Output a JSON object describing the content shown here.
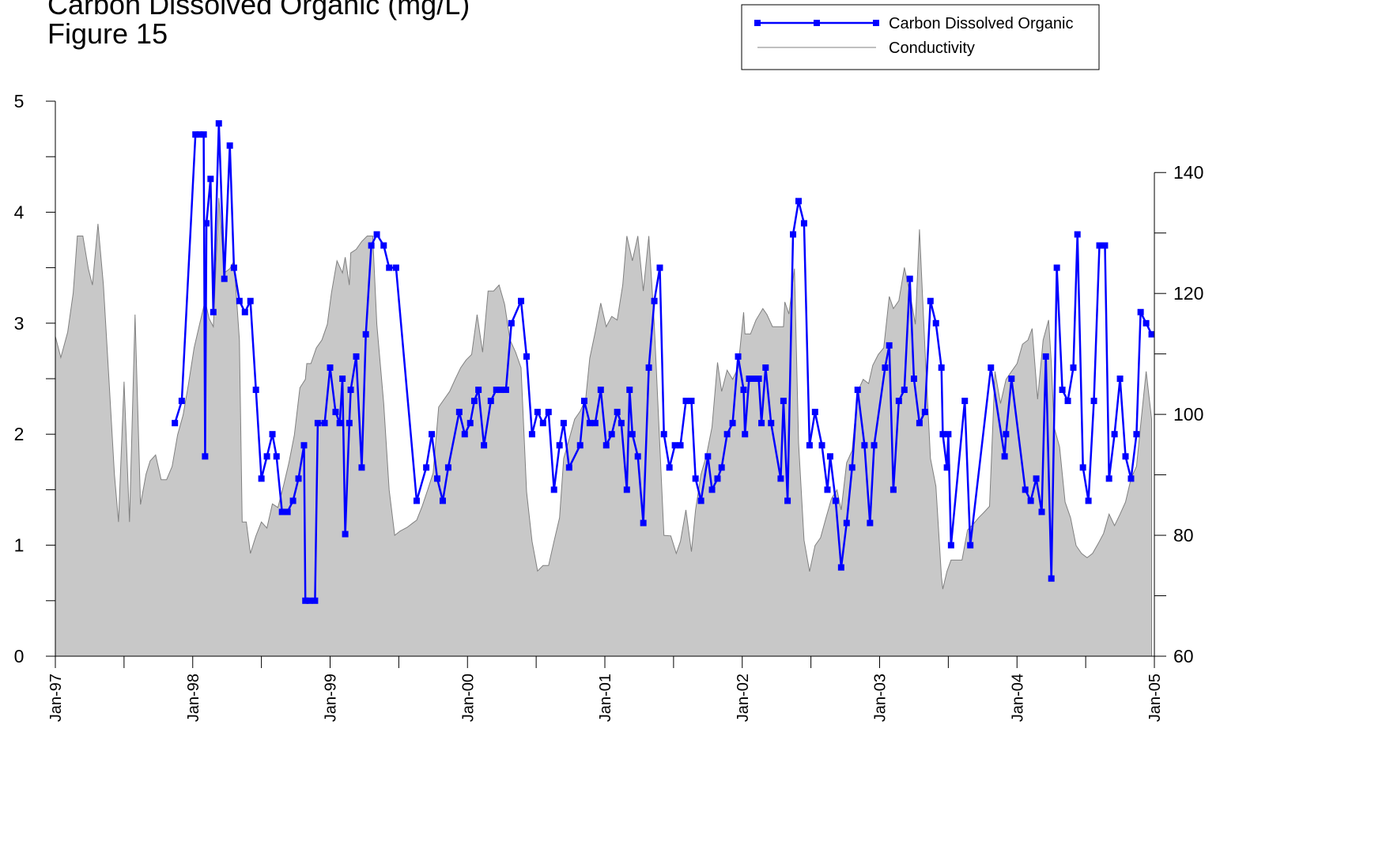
{
  "chart_data": {
    "type": "line",
    "title": "Carbon Dissolved Organic (mg/L)",
    "subtitle": "Figure 15",
    "legend": "top-right",
    "xlim": [
      1997,
      2005
    ],
    "xticks": [
      {
        "value": 1997,
        "label": "Jan-97"
      },
      {
        "value": 1998,
        "label": "Jan-98"
      },
      {
        "value": 1999,
        "label": "Jan-99"
      },
      {
        "value": 2000,
        "label": "Jan-00"
      },
      {
        "value": 2001,
        "label": "Jan-01"
      },
      {
        "value": 2002,
        "label": "Jan-02"
      },
      {
        "value": 2003,
        "label": "Jan-03"
      },
      {
        "value": 2004,
        "label": "Jan-04"
      },
      {
        "value": 2005,
        "label": "Jan-05"
      }
    ],
    "xminorticks": [
      1997.5,
      1998.5,
      1999.5,
      2000.5,
      2001.5,
      2002.5,
      2003.5,
      2004.5
    ],
    "ylim": [
      0,
      5
    ],
    "yticks": [
      0,
      1,
      2,
      3,
      4,
      5
    ],
    "yminorticks": [
      0.5,
      1.5,
      2.5,
      3.5,
      4.5
    ],
    "y2lim": [
      60,
      151.8
    ],
    "y2ticks": [
      60,
      80,
      100,
      120,
      140
    ],
    "y2minorticks": [
      70,
      90,
      110,
      130
    ],
    "series": [
      {
        "name": "Carbon Dissolved Organic",
        "type": "line",
        "color": "#0000ff",
        "x": [
          1997.87,
          1997.92,
          1998.02,
          1998.05,
          1998.08,
          1998.09,
          1998.1,
          1998.13,
          1998.15,
          1998.19,
          1998.23,
          1998.27,
          1998.3,
          1998.34,
          1998.38,
          1998.42,
          1998.46,
          1998.5,
          1998.54,
          1998.58,
          1998.61,
          1998.65,
          1998.69,
          1998.73,
          1998.77,
          1998.81,
          1998.82,
          1998.85,
          1998.89,
          1998.91,
          1998.96,
          1999.0,
          1999.04,
          1999.07,
          1999.09,
          1999.11,
          1999.14,
          1999.15,
          1999.19,
          1999.23,
          1999.26,
          1999.3,
          1999.34,
          1999.39,
          1999.43,
          1999.48,
          1999.63,
          1999.7,
          1999.74,
          1999.78,
          1999.82,
          1999.86,
          1999.94,
          1999.98,
          2000.02,
          2000.05,
          2000.08,
          2000.12,
          2000.17,
          2000.21,
          2000.24,
          2000.28,
          2000.32,
          2000.39,
          2000.43,
          2000.47,
          2000.51,
          2000.55,
          2000.59,
          2000.63,
          2000.67,
          2000.7,
          2000.74,
          2000.82,
          2000.85,
          2000.89,
          2000.93,
          2000.97,
          2001.01,
          2001.05,
          2001.09,
          2001.12,
          2001.16,
          2001.18,
          2001.2,
          2001.24,
          2001.28,
          2001.32,
          2001.36,
          2001.4,
          2001.43,
          2001.47,
          2001.51,
          2001.55,
          2001.59,
          2001.63,
          2001.66,
          2001.7,
          2001.75,
          2001.78,
          2001.82,
          2001.85,
          2001.89,
          2001.93,
          2001.97,
          2002.01,
          2002.02,
          2002.05,
          2002.09,
          2002.12,
          2002.14,
          2002.17,
          2002.21,
          2002.28,
          2002.3,
          2002.33,
          2002.37,
          2002.41,
          2002.45,
          2002.49,
          2002.53,
          2002.58,
          2002.62,
          2002.64,
          2002.68,
          2002.72,
          2002.76,
          2002.8,
          2002.84,
          2002.89,
          2002.93,
          2002.96,
          2003.04,
          2003.07,
          2003.1,
          2003.14,
          2003.18,
          2003.22,
          2003.25,
          2003.29,
          2003.33,
          2003.37,
          2003.41,
          2003.45,
          2003.46,
          2003.49,
          2003.5,
          2003.52,
          2003.62,
          2003.66,
          2003.81,
          2003.91,
          2003.92,
          2003.96,
          2004.06,
          2004.1,
          2004.14,
          2004.18,
          2004.21,
          2004.25,
          2004.29,
          2004.33,
          2004.37,
          2004.41,
          2004.44,
          2004.48,
          2004.52,
          2004.56,
          2004.6,
          2004.61,
          2004.64,
          2004.67,
          2004.71,
          2004.75,
          2004.79,
          2004.83,
          2004.87,
          2004.9,
          2004.94,
          2004.98
        ],
        "values": [
          2.1,
          2.3,
          4.7,
          4.7,
          4.7,
          1.8,
          3.9,
          4.3,
          3.1,
          4.8,
          3.4,
          4.6,
          3.5,
          3.2,
          3.1,
          3.2,
          2.4,
          1.6,
          1.8,
          2.0,
          1.8,
          1.3,
          1.3,
          1.4,
          1.6,
          1.9,
          0.5,
          0.5,
          0.5,
          2.1,
          2.1,
          2.6,
          2.2,
          2.1,
          2.5,
          1.1,
          2.1,
          2.4,
          2.7,
          1.7,
          2.9,
          3.7,
          3.8,
          3.7,
          3.5,
          3.5,
          1.4,
          1.7,
          2.0,
          1.6,
          1.4,
          1.7,
          2.2,
          2.0,
          2.1,
          2.3,
          2.4,
          1.9,
          2.3,
          2.4,
          2.4,
          2.4,
          3.0,
          3.2,
          2.7,
          2.0,
          2.2,
          2.1,
          2.2,
          1.5,
          1.9,
          2.1,
          1.7,
          1.9,
          2.3,
          2.1,
          2.1,
          2.4,
          1.9,
          2.0,
          2.2,
          2.1,
          1.5,
          2.4,
          2.0,
          1.8,
          1.2,
          2.6,
          3.2,
          3.5,
          2.0,
          1.7,
          1.9,
          1.9,
          2.3,
          2.3,
          1.6,
          1.4,
          1.8,
          1.5,
          1.6,
          1.7,
          2.0,
          2.1,
          2.7,
          2.4,
          2.0,
          2.5,
          2.5,
          2.5,
          2.1,
          2.6,
          2.1,
          1.6,
          2.3,
          1.4,
          3.8,
          4.1,
          3.9,
          1.9,
          2.2,
          1.9,
          1.5,
          1.8,
          1.4,
          0.8,
          1.2,
          1.7,
          2.4,
          1.9,
          1.2,
          1.9,
          2.6,
          2.8,
          1.5,
          2.3,
          2.4,
          3.4,
          2.5,
          2.1,
          2.2,
          3.2,
          3.0,
          2.6,
          2.0,
          1.7,
          2.0,
          1.0,
          2.3,
          1.0,
          2.6,
          1.8,
          2.0,
          2.5,
          1.5,
          1.4,
          1.6,
          1.3,
          2.7,
          0.7,
          3.5,
          2.4,
          2.3,
          2.6,
          3.8,
          1.7,
          1.4,
          2.3,
          3.7,
          3.7,
          3.7,
          1.6,
          2.0,
          2.5,
          1.8,
          1.6,
          2.0,
          3.1,
          3.0,
          2.9
        ]
      },
      {
        "name": "Conductivity",
        "type": "area",
        "axis": "y2",
        "color": "#c8c8c8",
        "x": [
          1997.0,
          1997.04,
          1997.09,
          1997.13,
          1997.16,
          1997.2,
          1997.24,
          1997.27,
          1997.31,
          1997.35,
          1997.39,
          1997.43,
          1997.46,
          1997.5,
          1997.54,
          1997.58,
          1997.62,
          1997.66,
          1997.69,
          1997.73,
          1997.77,
          1997.81,
          1997.85,
          1997.89,
          1997.93,
          1997.97,
          1998.01,
          1998.05,
          1998.09,
          1998.12,
          1998.15,
          1998.19,
          1998.23,
          1998.27,
          1998.3,
          1998.34,
          1998.36,
          1998.39,
          1998.42,
          1998.46,
          1998.5,
          1998.54,
          1998.58,
          1998.62,
          1998.66,
          1998.7,
          1998.74,
          1998.78,
          1998.82,
          1998.83,
          1998.86,
          1998.9,
          1998.94,
          1998.98,
          1999.01,
          1999.05,
          1999.09,
          1999.11,
          1999.14,
          1999.15,
          1999.19,
          1999.23,
          1999.27,
          1999.31,
          1999.34,
          1999.39,
          1999.43,
          1999.47,
          1999.51,
          1999.56,
          1999.6,
          1999.63,
          1999.67,
          1999.71,
          1999.75,
          1999.79,
          1999.83,
          1999.87,
          1999.91,
          1999.95,
          1999.99,
          2000.03,
          2000.07,
          2000.11,
          2000.15,
          2000.19,
          2000.23,
          2000.27,
          2000.31,
          2000.35,
          2000.39,
          2000.43,
          2000.47,
          2000.51,
          2000.55,
          2000.59,
          2000.63,
          2000.67,
          2000.7,
          2000.74,
          2000.78,
          2000.82,
          2000.86,
          2000.89,
          2000.93,
          2000.97,
          2001.01,
          2001.05,
          2001.09,
          2001.13,
          2001.16,
          2001.2,
          2001.24,
          2001.28,
          2001.32,
          2001.36,
          2001.43,
          2001.48,
          2001.52,
          2001.55,
          2001.59,
          2001.63,
          2001.66,
          2001.7,
          2001.74,
          2001.78,
          2001.82,
          2001.85,
          2001.89,
          2001.93,
          2001.97,
          2002.01,
          2002.02,
          2002.06,
          2002.1,
          2002.15,
          2002.18,
          2002.22,
          2002.26,
          2002.3,
          2002.31,
          2002.34,
          2002.38,
          2002.41,
          2002.45,
          2002.49,
          2002.53,
          2002.57,
          2002.61,
          2002.65,
          2002.69,
          2002.72,
          2002.76,
          2002.8,
          2002.84,
          2002.88,
          2002.92,
          2002.95,
          2002.99,
          2003.03,
          2003.07,
          2003.1,
          2003.14,
          2003.18,
          2003.22,
          2003.26,
          2003.29,
          2003.33,
          2003.37,
          2003.41,
          2003.45,
          2003.46,
          2003.49,
          2003.52,
          2003.56,
          2003.6,
          2003.64,
          2003.68,
          2003.72,
          2003.76,
          2003.8,
          2003.84,
          2003.88,
          2003.92,
          2003.96,
          2004.0,
          2004.04,
          2004.08,
          2004.11,
          2004.15,
          2004.19,
          2004.23,
          2004.25,
          2004.27,
          2004.31,
          2004.35,
          2004.39,
          2004.43,
          2004.47,
          2004.51,
          2004.55,
          2004.59,
          2004.63,
          2004.67,
          2004.71,
          2004.75,
          2004.79,
          2004.83,
          2004.87,
          2004.91,
          2004.94,
          2004.98
        ],
        "values": [
          112.9,
          109.4,
          113.6,
          120.1,
          129.5,
          129.5,
          124.1,
          121.4,
          131.5,
          121.4,
          105.8,
          90.1,
          82.2,
          105.4,
          82.2,
          116.5,
          85.1,
          90.1,
          92.3,
          93.3,
          89.2,
          89.2,
          91.4,
          96.6,
          99.9,
          105.1,
          111.0,
          114.9,
          118.8,
          115.8,
          114.5,
          135.8,
          123.4,
          124.1,
          125.4,
          112.3,
          82.2,
          82.2,
          77.0,
          79.9,
          82.2,
          81.2,
          85.2,
          84.6,
          88.1,
          92.0,
          96.6,
          104.4,
          105.8,
          108.4,
          108.4,
          111.0,
          112.3,
          114.9,
          120.1,
          125.4,
          123.4,
          126.0,
          121.4,
          126.7,
          127.3,
          128.6,
          129.5,
          129.5,
          114.9,
          101.8,
          87.5,
          80.0,
          80.7,
          81.3,
          82.0,
          82.5,
          84.8,
          87.5,
          90.3,
          101.2,
          102.5,
          103.8,
          105.8,
          107.7,
          109.0,
          109.9,
          116.5,
          110.3,
          120.4,
          120.4,
          121.4,
          118.2,
          112.3,
          110.3,
          107.7,
          87.2,
          79.0,
          74.1,
          75.0,
          75.0,
          79.0,
          82.9,
          92.7,
          95.9,
          99.2,
          100.5,
          102.5,
          109.3,
          113.6,
          118.4,
          114.5,
          116.2,
          115.6,
          121.4,
          129.5,
          125.4,
          129.5,
          120.4,
          129.5,
          114.9,
          80.0,
          79.9,
          77.0,
          79.0,
          84.2,
          77.3,
          84.2,
          90.1,
          93.3,
          97.9,
          108.6,
          103.8,
          107.3,
          105.8,
          107.7,
          116.9,
          113.3,
          113.3,
          115.6,
          117.5,
          116.5,
          114.5,
          114.5,
          114.5,
          118.6,
          116.6,
          124.1,
          95.3,
          79.2,
          74.0,
          78.3,
          79.6,
          82.9,
          86.1,
          87.5,
          84.2,
          92.0,
          94.0,
          103.8,
          105.8,
          105.1,
          108.1,
          109.9,
          111.0,
          119.5,
          117.5,
          118.8,
          124.3,
          120.1,
          114.9,
          130.6,
          111.0,
          92.7,
          88.1,
          73.1,
          71.1,
          74.0,
          75.9,
          75.9,
          75.9,
          80.9,
          81.8,
          82.9,
          83.8,
          84.8,
          107.1,
          101.8,
          105.8,
          107.1,
          108.4,
          111.6,
          112.3,
          114.2,
          102.5,
          112.3,
          115.6,
          108.4,
          97.9,
          94.6,
          85.5,
          82.9,
          78.3,
          77.0,
          76.3,
          77.0,
          78.6,
          80.3,
          83.5,
          81.6,
          83.5,
          85.5,
          89.4,
          91.4,
          100.5,
          107.1,
          99.2
        ]
      }
    ]
  }
}
